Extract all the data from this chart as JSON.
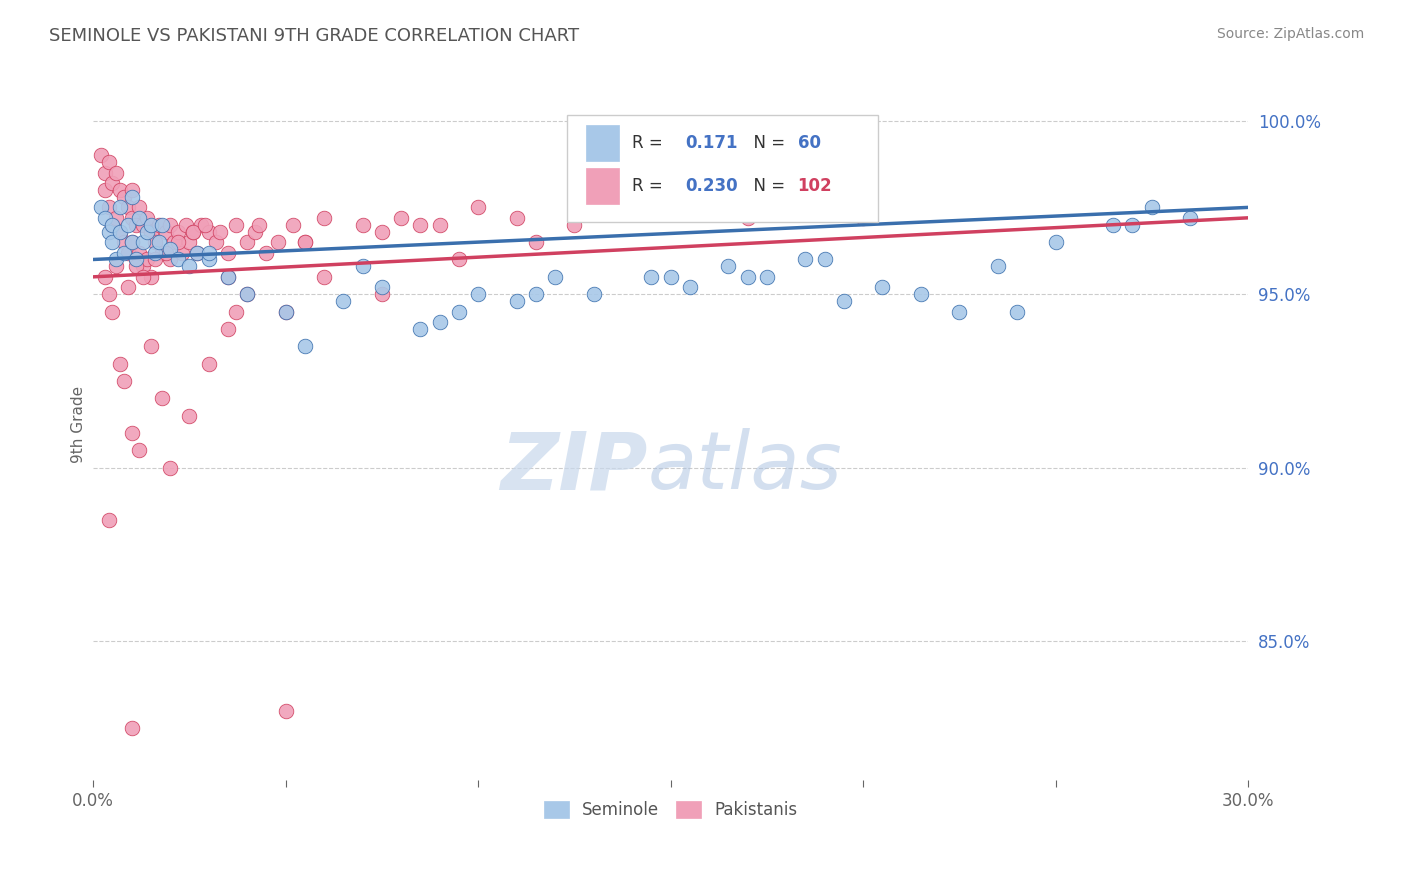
{
  "title": "SEMINOLE VS PAKISTANI 9TH GRADE CORRELATION CHART",
  "source": "Source: ZipAtlas.com",
  "ylabel_left": "9th Grade",
  "x_min": 0.0,
  "x_max": 30.0,
  "y_min": 81.0,
  "y_max": 101.5,
  "x_ticks": [
    0.0,
    5.0,
    10.0,
    15.0,
    20.0,
    25.0,
    30.0
  ],
  "y_ticks_right": [
    85.0,
    90.0,
    95.0,
    100.0
  ],
  "y_tick_labels_right": [
    "85.0%",
    "90.0%",
    "95.0%",
    "100.0%"
  ],
  "seminole_color": "#a8c8e8",
  "pakistani_color": "#f0a0b8",
  "seminole_line_color": "#3a6fad",
  "pakistani_line_color": "#d04060",
  "legend_R_seminole": "0.171",
  "legend_N_seminole": "60",
  "legend_R_pakistani": "0.230",
  "legend_N_pakistani": "102",
  "background_color": "#ffffff",
  "grid_color": "#cccccc",
  "seminole_x": [
    0.2,
    0.3,
    0.4,
    0.5,
    0.5,
    0.6,
    0.7,
    0.7,
    0.8,
    0.9,
    1.0,
    1.0,
    1.1,
    1.2,
    1.3,
    1.4,
    1.5,
    1.6,
    1.7,
    1.8,
    2.0,
    2.2,
    2.5,
    2.7,
    3.0,
    3.5,
    4.0,
    5.0,
    6.5,
    7.5,
    8.5,
    9.5,
    10.0,
    11.0,
    12.0,
    13.0,
    14.5,
    15.5,
    16.5,
    17.5,
    18.5,
    19.5,
    20.5,
    21.5,
    22.5,
    23.5,
    25.0,
    26.5,
    27.5,
    28.5,
    3.0,
    5.5,
    7.0,
    9.0,
    11.5,
    15.0,
    17.0,
    19.0,
    24.0,
    27.0
  ],
  "seminole_y": [
    97.5,
    97.2,
    96.8,
    97.0,
    96.5,
    96.0,
    96.8,
    97.5,
    96.2,
    97.0,
    96.5,
    97.8,
    96.0,
    97.2,
    96.5,
    96.8,
    97.0,
    96.2,
    96.5,
    97.0,
    96.3,
    96.0,
    95.8,
    96.2,
    96.0,
    95.5,
    95.0,
    94.5,
    94.8,
    95.2,
    94.0,
    94.5,
    95.0,
    94.8,
    95.5,
    95.0,
    95.5,
    95.2,
    95.8,
    95.5,
    96.0,
    94.8,
    95.2,
    95.0,
    94.5,
    95.8,
    96.5,
    97.0,
    97.5,
    97.2,
    96.2,
    93.5,
    95.8,
    94.2,
    95.0,
    95.5,
    95.5,
    96.0,
    94.5,
    97.0
  ],
  "pakistani_x": [
    0.2,
    0.3,
    0.3,
    0.4,
    0.4,
    0.5,
    0.5,
    0.6,
    0.6,
    0.7,
    0.7,
    0.8,
    0.8,
    0.9,
    0.9,
    1.0,
    1.0,
    1.0,
    1.1,
    1.1,
    1.2,
    1.2,
    1.3,
    1.3,
    1.4,
    1.4,
    1.5,
    1.5,
    1.6,
    1.7,
    1.8,
    1.9,
    2.0,
    2.0,
    2.1,
    2.2,
    2.3,
    2.4,
    2.5,
    2.6,
    2.7,
    2.8,
    3.0,
    3.2,
    3.5,
    3.7,
    4.0,
    4.2,
    4.5,
    4.8,
    5.2,
    5.5,
    6.0,
    7.0,
    7.5,
    8.0,
    9.0,
    10.0,
    11.0,
    12.5,
    14.5,
    17.0,
    19.5,
    0.5,
    0.7,
    0.8,
    1.0,
    1.2,
    1.5,
    1.8,
    2.0,
    2.5,
    3.0,
    3.5,
    4.0,
    5.0,
    6.0,
    7.5,
    9.5,
    11.5,
    0.3,
    0.4,
    0.6,
    0.9,
    1.1,
    1.3,
    1.6,
    1.9,
    2.2,
    2.6,
    2.9,
    3.3,
    4.3,
    5.5,
    8.5,
    13.0,
    0.4,
    3.5,
    3.7,
    5.0,
    20.0,
    1.0
  ],
  "pakistani_y": [
    99.0,
    98.5,
    98.0,
    98.8,
    97.5,
    98.2,
    97.0,
    98.5,
    97.2,
    98.0,
    96.8,
    97.8,
    96.5,
    97.5,
    96.2,
    98.0,
    97.2,
    96.5,
    97.0,
    96.0,
    97.5,
    96.2,
    97.0,
    95.8,
    97.2,
    96.0,
    96.8,
    95.5,
    96.5,
    97.0,
    96.2,
    96.8,
    97.0,
    96.0,
    96.5,
    96.8,
    96.2,
    97.0,
    96.5,
    96.8,
    96.2,
    97.0,
    96.8,
    96.5,
    96.2,
    97.0,
    96.5,
    96.8,
    96.2,
    96.5,
    97.0,
    96.5,
    97.2,
    97.0,
    96.8,
    97.2,
    97.0,
    97.5,
    97.2,
    97.0,
    97.5,
    97.2,
    97.8,
    94.5,
    93.0,
    92.5,
    91.0,
    90.5,
    93.5,
    92.0,
    90.0,
    91.5,
    93.0,
    94.0,
    95.0,
    94.5,
    95.5,
    95.0,
    96.0,
    96.5,
    95.5,
    95.0,
    95.8,
    95.2,
    95.8,
    95.5,
    96.0,
    96.2,
    96.5,
    96.8,
    97.0,
    96.8,
    97.0,
    96.5,
    97.0,
    97.5,
    88.5,
    95.5,
    94.5,
    83.0,
    97.2,
    82.5
  ]
}
